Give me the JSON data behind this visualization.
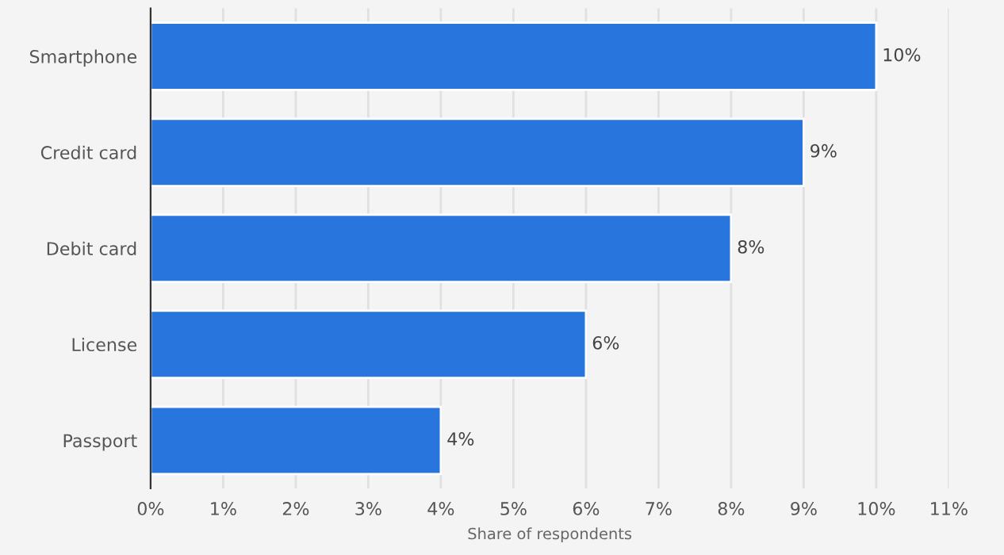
{
  "chart_data": {
    "type": "bar",
    "orientation": "horizontal",
    "xlabel": "Share of respondents",
    "categories": [
      "Smartphone",
      "Credit card",
      "Debit card",
      "License",
      "Passport"
    ],
    "values": [
      10,
      9,
      8,
      6,
      4
    ],
    "value_labels": [
      "10%",
      "9%",
      "8%",
      "6%",
      "4%"
    ],
    "color": "#2876dd",
    "xlim": [
      0,
      11
    ],
    "xticks": [
      {
        "value": 0,
        "label": "0%"
      },
      {
        "value": 1,
        "label": "1%"
      },
      {
        "value": 2,
        "label": "2%"
      },
      {
        "value": 3,
        "label": "3%"
      },
      {
        "value": 4,
        "label": "4%"
      },
      {
        "value": 5,
        "label": "5%"
      },
      {
        "value": 6,
        "label": "6%"
      },
      {
        "value": 7,
        "label": "7%"
      },
      {
        "value": 8,
        "label": "8%"
      },
      {
        "value": 9,
        "label": "9%"
      },
      {
        "value": 10,
        "label": "10%"
      },
      {
        "value": 11,
        "label": "11%"
      }
    ],
    "grid": "x",
    "legend": false
  }
}
